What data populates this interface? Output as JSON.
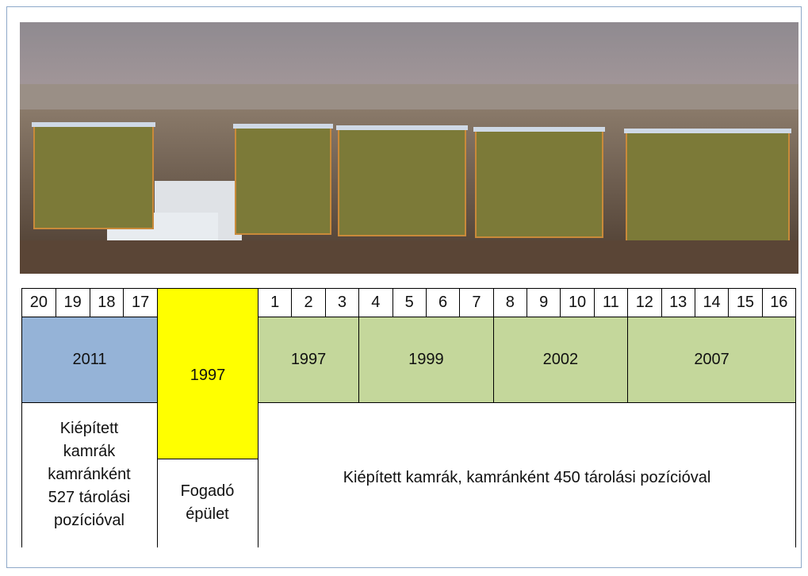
{
  "table": {
    "numbers_left": [
      20,
      19,
      18,
      17
    ],
    "numbers_right": [
      1,
      2,
      3,
      4,
      5,
      6,
      7,
      8,
      9,
      10,
      11,
      12,
      13,
      14,
      15,
      16
    ],
    "year_left": "2011",
    "reception_year": "1997",
    "years_right": [
      "1997",
      "1999",
      "2002",
      "2007"
    ],
    "left_note": [
      "Kiépített",
      "kamrák",
      "kamránként",
      "527 tárolási",
      "pozícióval"
    ],
    "reception_note": [
      "Fogadó",
      "épület"
    ],
    "right_note": "Kiépített kamrák, kamránként 450 tárolási pozícióval"
  }
}
